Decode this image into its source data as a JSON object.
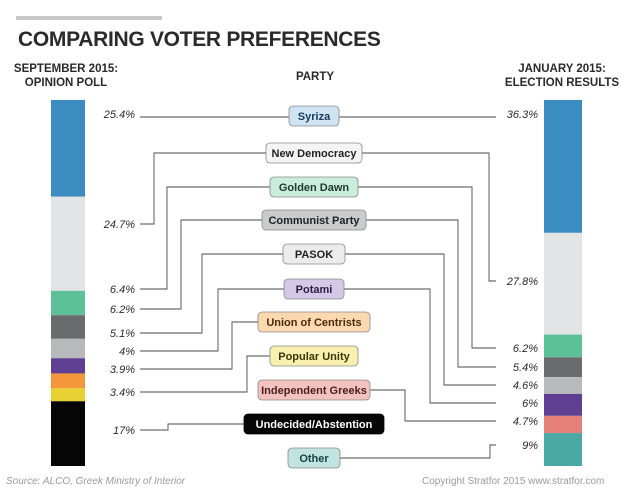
{
  "chart_data": {
    "type": "bar",
    "title": "COMPARING VOTER PREFERENCES",
    "left_header": [
      "SEPTEMBER 2015:",
      "OPINION POLL"
    ],
    "middle_header": "PARTY",
    "right_header": [
      "JANUARY 2015:",
      "ELECTION RESULTS"
    ],
    "source": "Source: ALCO, Greek Ministry of Interior",
    "credit": "Copyright Stratfor 2015   www.stratfor.com",
    "unit": "%",
    "categories": [
      "Syriza",
      "New Democracy",
      "Golden Dawn",
      "Communist Party",
      "PASOK",
      "Potami",
      "Union of Centrists",
      "Popular Unity",
      "Independent Greeks",
      "Undecided/Abstention",
      "Other"
    ],
    "series": [
      {
        "name": "September 2015: Opinion Poll",
        "values": [
          25.4,
          24.7,
          6.4,
          6.2,
          5.1,
          4,
          3.9,
          3.4,
          null,
          17,
          null
        ],
        "labels": [
          "25.4%",
          "24.7%",
          "6.4%",
          "6.2%",
          "5.1%",
          "4%",
          "3.9%",
          "3.4%",
          "",
          "17%",
          ""
        ]
      },
      {
        "name": "January 2015: Election Results",
        "values": [
          36.3,
          27.8,
          6.2,
          5.4,
          4.6,
          6,
          null,
          null,
          4.7,
          null,
          9
        ],
        "labels": [
          "36.3%",
          "27.8%",
          "6.2%",
          "5.4%",
          "4.6%",
          "6%",
          "",
          "",
          "4.7%",
          "",
          "9%"
        ]
      }
    ],
    "colors": {
      "Syriza": "#3b8cc0",
      "New Democracy": "#e3e4e6",
      "Golden Dawn": "#5cc198",
      "Communist Party": "#6a6b6d",
      "PASOK": "#b8b9bb",
      "Potami": "#5e3f92",
      "Union of Centrists": "#f3973a",
      "Popular Unity": "#e7d133",
      "Independent Greeks": "#e57f79",
      "Undecided/Abstention": "#050505",
      "Other": "#4aa9a2"
    },
    "label_styles": {
      "Syriza": {
        "bg": "#cfe4f2",
        "fg": "#1a3a5a"
      },
      "New Democracy": {
        "bg": "#f4f4f5",
        "fg": "#222222"
      },
      "Golden Dawn": {
        "bg": "#c9ecdb",
        "fg": "#1f3a2e"
      },
      "Communist Party": {
        "bg": "#cacbcd",
        "fg": "#222222"
      },
      "PASOK": {
        "bg": "#ececed",
        "fg": "#222222"
      },
      "Potami": {
        "bg": "#d3c8e6",
        "fg": "#2a1e44"
      },
      "Union of Centrists": {
        "bg": "#fbd8b0",
        "fg": "#4a2c0a"
      },
      "Popular Unity": {
        "bg": "#f8f0b0",
        "fg": "#3c3608"
      },
      "Independent Greeks": {
        "bg": "#f3c2bf",
        "fg": "#4a1e1b"
      },
      "Undecided/Abstention": {
        "bg": "#050505",
        "fg": "#ffffff"
      },
      "Other": {
        "bg": "#c2e4e1",
        "fg": "#16403c"
      }
    },
    "left_order": [
      "Syriza",
      "New Democracy",
      "Golden Dawn",
      "Communist Party",
      "PASOK",
      "Potami",
      "Union of Centrists",
      "Popular Unity",
      "Undecided/Abstention"
    ],
    "right_order": [
      "Syriza",
      "New Democracy",
      "Golden Dawn",
      "Communist Party",
      "PASOK",
      "Potami",
      "Independent Greeks",
      "Other"
    ]
  }
}
